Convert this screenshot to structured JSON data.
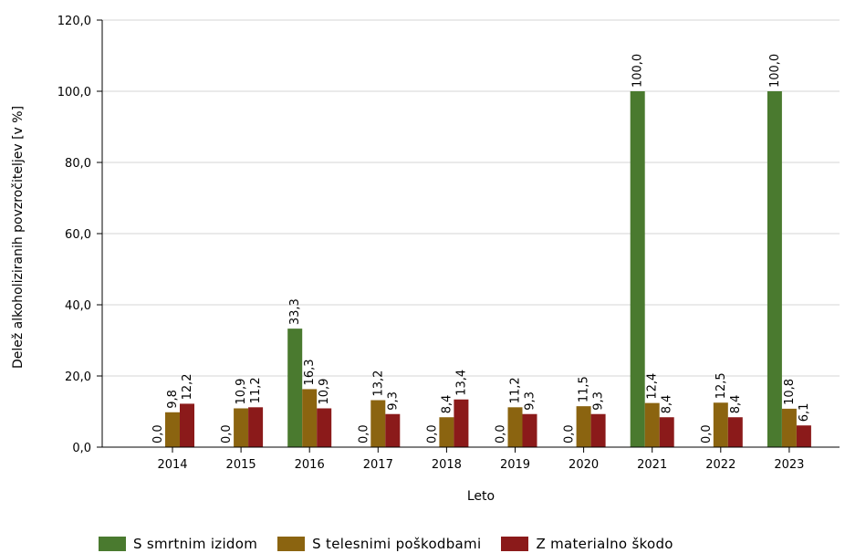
{
  "chart_data": {
    "type": "bar",
    "title": "",
    "xlabel": "Leto",
    "ylabel": "Delež alkoholiziranih povzročiteljev [v %]",
    "ylim": [
      0,
      120
    ],
    "y_ticks": [
      "0,0",
      "20,0",
      "40,0",
      "60,0",
      "80,0",
      "100,0",
      "120,0"
    ],
    "grid": true,
    "legend_position": "bottom",
    "categories": [
      "2014",
      "2015",
      "2016",
      "2017",
      "2018",
      "2019",
      "2020",
      "2021",
      "2022",
      "2023"
    ],
    "series": [
      {
        "name": "S smrtnim izidom",
        "color": "#4a7a2f",
        "values": [
          0.0,
          0.0,
          33.3,
          0.0,
          0.0,
          0.0,
          0.0,
          100.0,
          0.0,
          100.0
        ],
        "labels": [
          "0,0",
          "0,0",
          "33,3",
          "0,0",
          "0,0",
          "0,0",
          "0,0",
          "100,0",
          "0,0",
          "100,0"
        ]
      },
      {
        "name": "S telesnimi poškodbami",
        "color": "#8b6410",
        "values": [
          9.8,
          10.9,
          16.3,
          13.2,
          8.4,
          11.2,
          11.5,
          12.4,
          12.5,
          10.8
        ],
        "labels": [
          "9,8",
          "10,9",
          "16,3",
          "13,2",
          "8,4",
          "11,2",
          "11,5",
          "12,4",
          "12,5",
          "10,8"
        ]
      },
      {
        "name": "Z materialno škodo",
        "color": "#8b1a1a",
        "values": [
          12.2,
          11.2,
          10.9,
          9.3,
          13.4,
          9.3,
          9.3,
          8.4,
          8.4,
          6.1
        ],
        "labels": [
          "12,2",
          "11,2",
          "10,9",
          "9,3",
          "13,4",
          "9,3",
          "9,3",
          "8,4",
          "8,4",
          "6,1"
        ]
      }
    ]
  }
}
